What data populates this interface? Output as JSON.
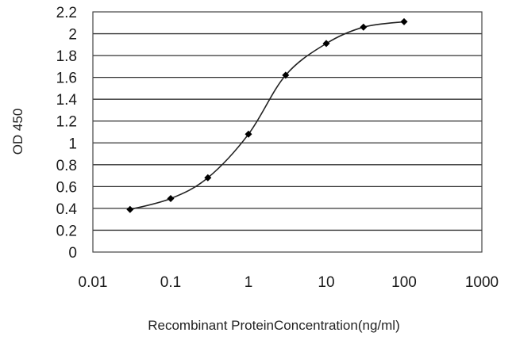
{
  "chart_data": {
    "type": "line",
    "xscale": "log",
    "xlabel": "Recombinant ProteinConcentration(ng/ml)",
    "ylabel": "OD 450",
    "xlim": [
      0.01,
      1000
    ],
    "ylim": [
      0,
      2.2
    ],
    "x_ticks": [
      0.01,
      0.1,
      1,
      10,
      100,
      1000
    ],
    "x_tick_labels": [
      "0.01",
      "0.1",
      "1",
      "10",
      "100",
      "1000"
    ],
    "y_ticks": [
      0,
      0.2,
      0.4,
      0.6,
      0.8,
      1,
      1.2,
      1.4,
      1.6,
      1.8,
      2,
      2.2
    ],
    "y_tick_labels": [
      "0",
      "0.2",
      "0.4",
      "0.6",
      "0.8",
      "1",
      "1.2",
      "1.4",
      "1.6",
      "1.8",
      "2",
      "2.2"
    ],
    "grid": "horizontal",
    "legend": "none",
    "series": [
      {
        "x": [
          0.03,
          0.1,
          0.3,
          1,
          3,
          10,
          30,
          100
        ],
        "y": [
          0.39,
          0.49,
          0.68,
          1.08,
          1.62,
          1.91,
          2.06,
          2.11
        ]
      }
    ],
    "colors": {
      "line": "#222222",
      "marker": "#000000",
      "grid": "#333333",
      "frame": "#444444",
      "plot_bg": "#ffffff"
    }
  }
}
